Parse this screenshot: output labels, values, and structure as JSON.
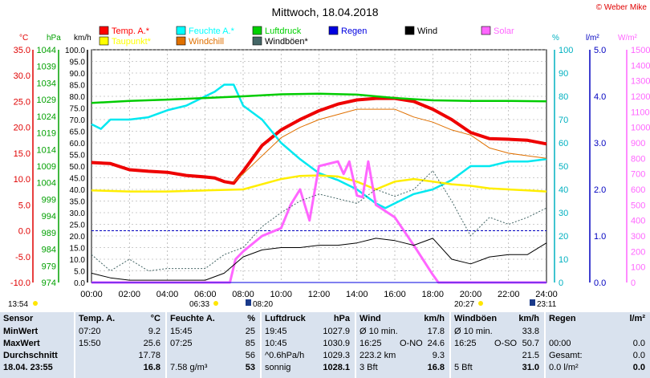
{
  "chart_data": {
    "type": "line",
    "title": "Mittwoch, 18.04.2018",
    "copyright": "© Weber Mike",
    "x_ticks": [
      "00:00",
      "02:00",
      "04:00",
      "06:00",
      "08:00",
      "10:00",
      "12:00",
      "14:00",
      "16:00",
      "18:00",
      "20:00",
      "22:00",
      "24:00"
    ],
    "xlim_hours": [
      0,
      24
    ],
    "grid": true,
    "legend": [
      {
        "name": "Temp. A.*",
        "color": "#ff0000"
      },
      {
        "name": "Feuchte A.*",
        "color": "#00ffff"
      },
      {
        "name": "Luftdruck",
        "color": "#00d000"
      },
      {
        "name": "Regen",
        "color": "#0000e0"
      },
      {
        "name": "Wind",
        "color": "#000000"
      },
      {
        "name": "Solar",
        "color": "#ff66ff"
      },
      {
        "name": "Taupunkt*",
        "color": "#ffff00"
      },
      {
        "name": "Windchill",
        "color": "#e07000"
      },
      {
        "name": "Windböen*",
        "color": "#446666"
      }
    ],
    "axes": [
      {
        "unit": "°C",
        "color": "#e00000",
        "min": -10,
        "max": 35,
        "ticks": [
          "35.0",
          "30.0",
          "25.0",
          "20.0",
          "15.0",
          "10.0",
          "5.0",
          "0.0",
          "-5.0",
          "-10.0"
        ]
      },
      {
        "unit": "hPa",
        "color": "#00a000",
        "min": 974,
        "max": 1044,
        "ticks": [
          "1044",
          "1039",
          "1034",
          "1029",
          "1024",
          "1019",
          "1014",
          "1009",
          "1004",
          "999",
          "994",
          "989",
          "984",
          "979",
          "974"
        ]
      },
      {
        "unit": "km/h",
        "color": "#000000",
        "min": 0,
        "max": 100,
        "ticks": [
          "100.0",
          "95.0",
          "90.0",
          "85.0",
          "80.0",
          "75.0",
          "70.0",
          "65.0",
          "60.0",
          "55.0",
          "50.0",
          "45.0",
          "40.0",
          "35.0",
          "30.0",
          "25.0",
          "20.0",
          "15.0",
          "10.0",
          "5.0",
          "0.0"
        ]
      },
      {
        "unit": "%",
        "color": "#00b0c0",
        "min": 0,
        "max": 100,
        "ticks": [
          "100",
          "90",
          "80",
          "70",
          "60",
          "50",
          "40",
          "30",
          "20",
          "10",
          "0"
        ]
      },
      {
        "unit": "l/m²",
        "color": "#0000c0",
        "min": 0,
        "max": 5,
        "ticks": [
          "5.0",
          "4.0",
          "3.0",
          "2.0",
          "1.0",
          "0.0"
        ]
      },
      {
        "unit": "W/m²",
        "color": "#ff66ff",
        "min": 0,
        "max": 1500,
        "ticks": [
          "1500",
          "1400",
          "1300",
          "1200",
          "1100",
          "1000",
          "900",
          "800",
          "700",
          "600",
          "500",
          "400",
          "300",
          "200",
          "100",
          "0"
        ]
      }
    ],
    "annotations": {
      "now_time": "13:54",
      "sunrise": "06:33",
      "twilight_morning": "08:20",
      "sunset": "20:27",
      "twilight_evening": "23:11"
    },
    "series": [
      {
        "name": "Temp. A.*",
        "axis": "°C",
        "x": [
          0,
          1,
          2,
          3,
          4,
          5,
          6,
          6.5,
          7,
          7.5,
          8,
          8.5,
          9,
          10,
          11,
          12,
          13,
          14,
          15,
          16,
          17,
          18,
          19,
          20,
          21,
          22,
          23,
          24
        ],
        "y": [
          13.2,
          13,
          11.8,
          11.5,
          11.3,
          10.7,
          10.4,
          10.2,
          9.5,
          9.2,
          11.5,
          14,
          16.5,
          19.5,
          21.5,
          23.2,
          24.5,
          25.3,
          25.6,
          25.6,
          25,
          23.5,
          21.5,
          19,
          17.8,
          17.7,
          17.5,
          16.8
        ]
      },
      {
        "name": "Feuchte A.*",
        "axis": "%",
        "x": [
          0,
          0.5,
          1,
          2,
          3,
          4,
          5,
          6,
          6.5,
          7,
          7.5,
          8,
          9,
          10,
          11,
          12,
          13,
          14,
          15,
          15.5,
          16,
          17,
          18,
          19,
          20,
          21,
          22,
          23,
          24
        ],
        "y": [
          68,
          66,
          70,
          70,
          71,
          74,
          76,
          80,
          82,
          85,
          85,
          76,
          70,
          60,
          53,
          47,
          44,
          40,
          34,
          32,
          34,
          38,
          40,
          44,
          50,
          50,
          52,
          52,
          53
        ]
      },
      {
        "name": "Luftdruck",
        "axis": "hPa",
        "x": [
          0,
          2,
          4,
          6,
          8,
          10,
          12,
          14,
          16,
          18,
          20,
          22,
          24
        ],
        "y": [
          1028,
          1028.6,
          1029,
          1029.5,
          1030,
          1030.6,
          1030.8,
          1030.5,
          1029.5,
          1028.8,
          1028.6,
          1028.6,
          1028.5
        ]
      },
      {
        "name": "Taupunkt*",
        "axis": "°C",
        "x": [
          0,
          2,
          4,
          6,
          8,
          10,
          11,
          12,
          13,
          14,
          15,
          16,
          17,
          18,
          19,
          20,
          21,
          22,
          23,
          24
        ],
        "y": [
          7.8,
          7.6,
          7.6,
          7.8,
          8,
          10,
          10.6,
          10.7,
          10.5,
          9.5,
          8,
          9.5,
          10,
          9.5,
          9,
          8.7,
          8.2,
          8,
          7.8,
          7.6
        ]
      },
      {
        "name": "Windchill",
        "axis": "°C",
        "x": [
          7.5,
          8,
          9,
          10,
          11,
          12,
          13,
          14,
          15,
          16,
          17,
          18,
          19,
          20,
          21,
          22,
          23,
          24
        ],
        "y": [
          9.5,
          11,
          14.5,
          18,
          20,
          21.5,
          22.5,
          23.5,
          23.5,
          23.5,
          22,
          21,
          19.5,
          18.5,
          16,
          15,
          14.5,
          14
        ]
      },
      {
        "name": "Solar",
        "axis": "W/m²",
        "x": [
          0,
          7.3,
          7.6,
          8,
          9,
          10,
          10.5,
          11,
          11.5,
          12,
          13,
          13.3,
          13.6,
          14,
          14.3,
          14.6,
          15,
          16,
          17,
          18,
          18.3,
          19,
          20,
          24
        ],
        "y": [
          0,
          0,
          150,
          200,
          300,
          350,
          500,
          600,
          400,
          750,
          780,
          700,
          780,
          560,
          550,
          780,
          500,
          420,
          240,
          50,
          0,
          0,
          0,
          0
        ]
      },
      {
        "name": "Windböen*",
        "axis": "km/h",
        "x": [
          0,
          1,
          2,
          3,
          4,
          5,
          6,
          7,
          8,
          9,
          10,
          11,
          12,
          13,
          14,
          15,
          16,
          17,
          18,
          19,
          20,
          21,
          22,
          23,
          24
        ],
        "y": [
          12,
          5,
          10,
          5,
          6,
          6,
          6,
          12,
          15,
          24,
          30,
          35,
          38,
          36,
          34,
          40,
          37,
          40,
          48,
          35,
          20,
          28,
          25,
          28,
          32
        ]
      },
      {
        "name": "Wind",
        "axis": "km/h",
        "x": [
          0,
          1,
          2,
          3,
          4,
          5,
          6,
          7,
          8,
          9,
          10,
          11,
          12,
          13,
          14,
          15,
          16,
          17,
          18,
          19,
          20,
          21,
          22,
          23,
          24
        ],
        "y": [
          4,
          2,
          1,
          1,
          1,
          1,
          1,
          4,
          11,
          14,
          15,
          15,
          16,
          16,
          17,
          19,
          18,
          16,
          19,
          10,
          8,
          11,
          12,
          12,
          17
        ]
      },
      {
        "name": "Regen",
        "axis": "l/m²",
        "x": [
          0,
          24
        ],
        "y": [
          0,
          0
        ]
      }
    ]
  },
  "table": {
    "sensor": {
      "header": "Sensor",
      "rows": [
        "MinWert",
        "MaxWert",
        "Durchschnitt"
      ],
      "last": "18.04. 23:55"
    },
    "temp": {
      "header": "Temp. A.",
      "unit": "°C",
      "rows": [
        [
          "07:20",
          "9.2"
        ],
        [
          "15:50",
          "25.6"
        ],
        [
          "",
          "17.78"
        ]
      ],
      "last": [
        "",
        "16.8"
      ]
    },
    "feuchte": {
      "header": "Feuchte A.",
      "unit": "%",
      "rows": [
        [
          "15:45",
          "25"
        ],
        [
          "07:25",
          "85"
        ],
        [
          "",
          "56"
        ]
      ],
      "last": [
        "7.58 g/m³",
        "53"
      ]
    },
    "luftdruck": {
      "header": "Luftdruck",
      "unit": "hPa",
      "rows": [
        [
          "19:45",
          "1027.9"
        ],
        [
          "10:45",
          "1030.9"
        ],
        [
          "^0.6hPa/h",
          "1029.3"
        ]
      ],
      "last": [
        "sonnig",
        "1028.1"
      ]
    },
    "wind": {
      "header": "Wind",
      "unit": "km/h",
      "rows": [
        [
          "Ø 10 min.",
          "",
          "17.8"
        ],
        [
          "16:25",
          "O-NO",
          "24.6"
        ],
        [
          "223.2 km",
          "",
          "9.3"
        ]
      ],
      "last": [
        "3 Bft",
        "",
        "16.8"
      ]
    },
    "boeen": {
      "header": "Windböen",
      "unit": "km/h",
      "rows": [
        [
          "Ø 10 min.",
          "",
          "33.8"
        ],
        [
          "16:25",
          "O-SO",
          "50.7"
        ],
        [
          "",
          "",
          "21.5"
        ]
      ],
      "last": [
        "5 Bft",
        "",
        "31.0"
      ]
    },
    "regen": {
      "header": "Regen",
      "unit": "l/m²",
      "rows": [
        [
          "",
          "",
          ""
        ],
        [
          "00:00",
          "",
          "0.0"
        ],
        [
          "Gesamt:",
          "",
          "0.0"
        ]
      ],
      "last": [
        "0.0 l/m²",
        "",
        "0.0"
      ]
    }
  }
}
